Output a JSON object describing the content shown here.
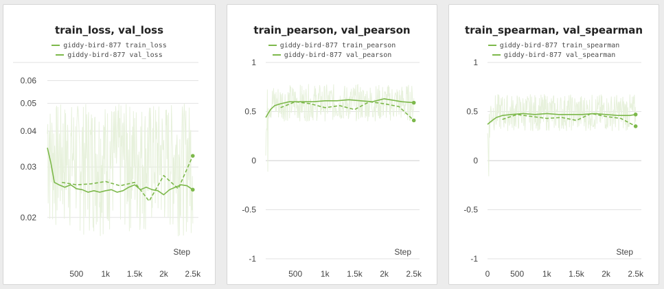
{
  "colors": {
    "series": "#7cb84a",
    "noise": "#e7f1dc",
    "grid": "#e2e2e2",
    "zero": "#cccccc"
  },
  "chart_data": [
    {
      "type": "line",
      "title": "train_loss, val_loss",
      "xlabel": "Step",
      "yscale": "log",
      "xlim": [
        0,
        2550
      ],
      "ylim": [
        0.0155,
        0.065
      ],
      "xticks": [
        {
          "v": 500,
          "label": "500"
        },
        {
          "v": 1000,
          "label": "1k"
        },
        {
          "v": 1500,
          "label": "1.5k"
        },
        {
          "v": 2000,
          "label": "2k"
        },
        {
          "v": 2500,
          "label": "2.5k"
        }
      ],
      "yticks": [
        {
          "v": 0.06,
          "label": "0.06"
        },
        {
          "v": 0.05,
          "label": "0.05"
        },
        {
          "v": 0.04,
          "label": "0.04"
        },
        {
          "v": 0.03,
          "label": "0.03"
        },
        {
          "v": 0.02,
          "label": "0.02"
        }
      ],
      "grid": true,
      "legend": "top-center",
      "series": [
        {
          "name": "giddy-bird-877 train_loss",
          "style": "solid",
          "x": [
            0,
            60,
            120,
            200,
            300,
            400,
            500,
            600,
            700,
            800,
            900,
            1000,
            1100,
            1200,
            1300,
            1400,
            1500,
            1600,
            1700,
            1800,
            1900,
            2000,
            2100,
            2200,
            2300,
            2400,
            2500
          ],
          "y": [
            0.035,
            0.031,
            0.0265,
            0.026,
            0.0255,
            0.026,
            0.0252,
            0.025,
            0.0245,
            0.0248,
            0.0245,
            0.0248,
            0.025,
            0.0245,
            0.0248,
            0.0255,
            0.026,
            0.025,
            0.0255,
            0.025,
            0.0248,
            0.024,
            0.025,
            0.0255,
            0.026,
            0.0258,
            0.025
          ],
          "end_marker": true
        },
        {
          "name": "giddy-bird-877 val_loss",
          "style": "dashed",
          "x": [
            250,
            500,
            750,
            1000,
            1250,
            1500,
            1750,
            2000,
            2250,
            2500
          ],
          "y": [
            0.0265,
            0.026,
            0.0262,
            0.0267,
            0.0258,
            0.0265,
            0.0228,
            0.028,
            0.0252,
            0.0328
          ],
          "end_marker": true
        }
      ]
    },
    {
      "type": "line",
      "title": "train_pearson, val_pearson",
      "xlabel": "Step",
      "xlim": [
        0,
        2550
      ],
      "ylim": [
        -1,
        1
      ],
      "xticks": [
        {
          "v": 500,
          "label": "500"
        },
        {
          "v": 1000,
          "label": "1k"
        },
        {
          "v": 1500,
          "label": "1.5k"
        },
        {
          "v": 2000,
          "label": "2k"
        },
        {
          "v": 2500,
          "label": "2.5k"
        }
      ],
      "yticks": [
        {
          "v": 1,
          "label": "1"
        },
        {
          "v": 0.5,
          "label": "0.5"
        },
        {
          "v": 0,
          "label": "0"
        },
        {
          "v": -0.5,
          "label": "-0.5"
        },
        {
          "v": -1,
          "label": "-1"
        }
      ],
      "grid": true,
      "legend": "top-center",
      "series": [
        {
          "name": "giddy-bird-877 train_pearson",
          "style": "solid",
          "x": [
            0,
            80,
            150,
            250,
            400,
            600,
            800,
            1000,
            1200,
            1400,
            1600,
            1800,
            2000,
            2100,
            2300,
            2500
          ],
          "y": [
            0.44,
            0.52,
            0.56,
            0.58,
            0.6,
            0.6,
            0.6,
            0.61,
            0.61,
            0.62,
            0.61,
            0.6,
            0.63,
            0.62,
            0.6,
            0.59
          ],
          "end_marker": true
        },
        {
          "name": "giddy-bird-877 val_pearson",
          "style": "dashed",
          "x": [
            250,
            500,
            750,
            1000,
            1250,
            1500,
            1750,
            2000,
            2250,
            2500
          ],
          "y": [
            0.54,
            0.6,
            0.58,
            0.54,
            0.56,
            0.52,
            0.6,
            0.58,
            0.55,
            0.41
          ],
          "end_marker": true
        }
      ]
    },
    {
      "type": "line",
      "title": "train_spearman, val_spearman",
      "xlabel": "Step",
      "xlim": [
        0,
        2550
      ],
      "ylim": [
        -1,
        1
      ],
      "xticks": [
        {
          "v": 0,
          "label": "0"
        },
        {
          "v": 500,
          "label": "500"
        },
        {
          "v": 1000,
          "label": "1k"
        },
        {
          "v": 1500,
          "label": "1.5k"
        },
        {
          "v": 2000,
          "label": "2k"
        },
        {
          "v": 2500,
          "label": "2.5k"
        }
      ],
      "yticks": [
        {
          "v": 1,
          "label": "1"
        },
        {
          "v": 0.5,
          "label": "0.5"
        },
        {
          "v": 0,
          "label": "0"
        },
        {
          "v": -0.5,
          "label": "-0.5"
        },
        {
          "v": -1,
          "label": "-1"
        }
      ],
      "grid": true,
      "legend": "top-center",
      "series": [
        {
          "name": "giddy-bird-877 train_spearman",
          "style": "solid",
          "x": [
            0,
            80,
            150,
            250,
            400,
            600,
            800,
            1000,
            1200,
            1400,
            1600,
            1800,
            2000,
            2200,
            2400,
            2500
          ],
          "y": [
            0.37,
            0.41,
            0.44,
            0.46,
            0.47,
            0.48,
            0.47,
            0.48,
            0.47,
            0.47,
            0.47,
            0.48,
            0.47,
            0.46,
            0.46,
            0.47
          ],
          "end_marker": true
        },
        {
          "name": "giddy-bird-877 val_spearman",
          "style": "dashed",
          "x": [
            250,
            500,
            750,
            1000,
            1250,
            1500,
            1750,
            2000,
            2250,
            2500
          ],
          "y": [
            0.42,
            0.47,
            0.45,
            0.43,
            0.44,
            0.41,
            0.48,
            0.45,
            0.43,
            0.35
          ],
          "end_marker": true
        }
      ]
    }
  ]
}
